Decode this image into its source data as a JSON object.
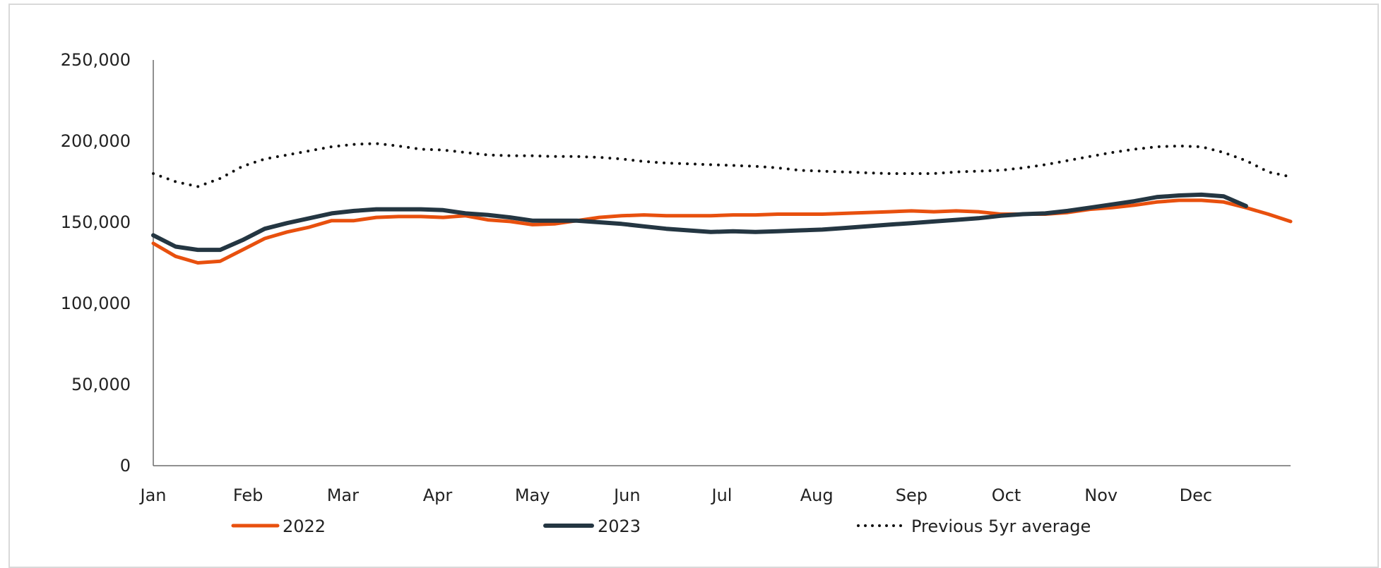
{
  "chart_data": {
    "type": "line",
    "title": "",
    "xlabel": "",
    "ylabel": "",
    "x_labels": [
      "Jan",
      "Feb",
      "Mar",
      "Apr",
      "May",
      "Jun",
      "Jul",
      "Aug",
      "Sep",
      "Oct",
      "Nov",
      "Dec"
    ],
    "ylim": [
      0,
      250000
    ],
    "y_ticks": [
      0,
      50000,
      100000,
      150000,
      200000,
      250000
    ],
    "y_tick_labels": [
      "0",
      "50,000",
      "100,000",
      "150,000",
      "200,000",
      "250,000"
    ],
    "grid": false,
    "legend_position": "bottom",
    "x_points": 52,
    "series": [
      {
        "name": "2022",
        "color": "#e8500e",
        "style": "solid",
        "values": [
          137000,
          129000,
          125000,
          126000,
          133000,
          140000,
          144000,
          147000,
          151000,
          151000,
          153000,
          153500,
          153500,
          153000,
          154000,
          151500,
          150500,
          148500,
          149000,
          151000,
          153000,
          154000,
          154500,
          154000,
          154000,
          154000,
          154500,
          154500,
          155000,
          155000,
          155000,
          155500,
          156000,
          156500,
          157000,
          156500,
          157000,
          156500,
          155000,
          155000,
          155000,
          156000,
          158000,
          159000,
          160500,
          162500,
          163500,
          163500,
          162500,
          159000,
          155000,
          150500
        ]
      },
      {
        "name": "2023",
        "color": "#243642",
        "style": "solid",
        "values": [
          142000,
          135000,
          133000,
          133000,
          139000,
          146000,
          149500,
          152500,
          155500,
          157000,
          158000,
          158000,
          158000,
          157500,
          155500,
          154500,
          153000,
          151000,
          151000,
          151000,
          150000,
          149000,
          147500,
          146000,
          145000,
          144000,
          144500,
          144000,
          144500,
          145000,
          145500,
          146500,
          147500,
          148500,
          149500,
          150500,
          151500,
          152500,
          154000,
          155000,
          155500,
          157000,
          159000,
          161000,
          163000,
          165500,
          166500,
          167000,
          166000,
          160000
        ]
      },
      {
        "name": "Previous 5yr average",
        "color": "#111111",
        "style": "dotted",
        "values": [
          180000,
          175000,
          172000,
          177000,
          184500,
          189000,
          191500,
          194000,
          196500,
          198000,
          198500,
          197000,
          195000,
          194500,
          193000,
          191500,
          191000,
          191000,
          190500,
          190500,
          190000,
          189000,
          187500,
          186500,
          186000,
          185500,
          185000,
          184500,
          183500,
          182000,
          181500,
          181000,
          180500,
          180000,
          180000,
          180000,
          181000,
          181500,
          182000,
          183500,
          185500,
          188000,
          190500,
          193000,
          195000,
          196500,
          197000,
          196500,
          193000,
          188000,
          181000,
          178000
        ]
      }
    ]
  }
}
